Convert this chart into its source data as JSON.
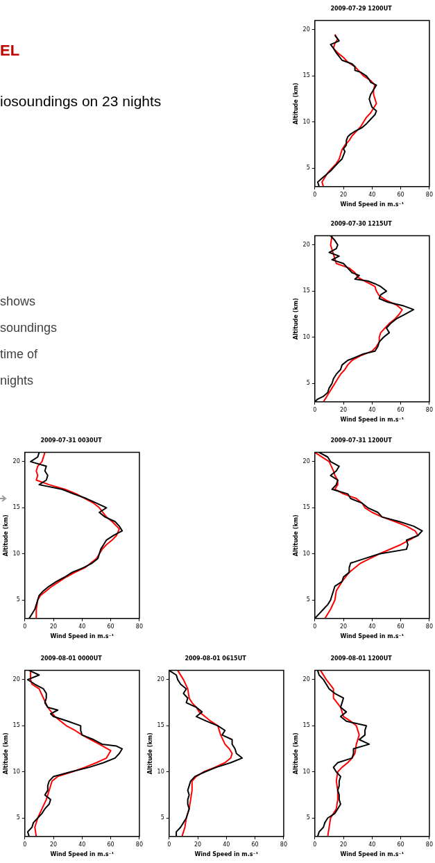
{
  "chart_data": [
    {
      "type": "other",
      "title": "EL",
      "subtitle": "iosoundings on 23 nights",
      "annotations": [
        "shows",
        "soundings",
        "time of",
        "nights"
      ]
    },
    {
      "type": "line",
      "title": "2009-07-29 1200UT",
      "xlabel": "Wind Speed in m.s⁻¹",
      "ylabel": "Altitude (km)",
      "xlim": [
        0,
        80
      ],
      "xticks": [
        0,
        20,
        40,
        60,
        80
      ],
      "ylim": [
        3,
        21
      ],
      "yticks": [
        5,
        10,
        15,
        20
      ],
      "grid": false,
      "legend": false,
      "marker": "none",
      "line_style": "solid",
      "series": [
        {
          "color": "#000000",
          "x": [
            3,
            2,
            5,
            8,
            11,
            14,
            17,
            19,
            20,
            21,
            20,
            22,
            22,
            23,
            25,
            28,
            33,
            36,
            39,
            42,
            43,
            40,
            39,
            38,
            39,
            41,
            43,
            39,
            38,
            36,
            32,
            28,
            28,
            26,
            19,
            17,
            15,
            13,
            11,
            17,
            15,
            14
          ],
          "values": [
            3.0,
            3.5,
            3.9,
            4.3,
            4.7,
            5.2,
            5.7,
            6.0,
            6.4,
            6.8,
            7.1,
            7.5,
            8.0,
            8.4,
            8.7,
            9.0,
            9.4,
            9.8,
            10.3,
            10.8,
            11.2,
            11.6,
            12.0,
            12.5,
            13.0,
            13.5,
            14.0,
            14.3,
            14.6,
            15.0,
            15.4,
            15.6,
            16.0,
            16.3,
            16.7,
            17.1,
            17.5,
            18.0,
            18.4,
            18.8,
            19.2,
            19.4
          ]
        },
        {
          "color": "#ff0000",
          "x": [
            6,
            5,
            7,
            9,
            12,
            15,
            17,
            18,
            19,
            21,
            24,
            26,
            29,
            32,
            34,
            36,
            39,
            41,
            43,
            42,
            41,
            41,
            42,
            39,
            34,
            31,
            28,
            23,
            20,
            16,
            13,
            14,
            16,
            14
          ],
          "values": [
            3.0,
            3.5,
            4.0,
            4.5,
            5.0,
            5.5,
            6.0,
            6.5,
            7.0,
            7.5,
            8.0,
            8.5,
            9.0,
            9.5,
            10.0,
            10.5,
            11.0,
            11.5,
            12.0,
            12.5,
            13.0,
            13.5,
            14.0,
            14.5,
            15.0,
            15.5,
            16.0,
            16.5,
            17.0,
            17.5,
            18.0,
            18.5,
            19.0,
            19.5
          ]
        }
      ]
    },
    {
      "type": "line",
      "title": "2009-07-30 1215UT",
      "xlabel": "Wind Speed in m.s⁻¹",
      "ylabel": "Altitude (km)",
      "xlim": [
        0,
        80
      ],
      "xticks": [
        0,
        20,
        40,
        60,
        80
      ],
      "ylim": [
        3,
        21
      ],
      "yticks": [
        5,
        10,
        15,
        20
      ],
      "grid": false,
      "legend": false,
      "marker": "none",
      "line_style": "solid",
      "series": [
        {
          "color": "#000000",
          "x": [
            0,
            2,
            6,
            9,
            10,
            12,
            13,
            15,
            18,
            19,
            23,
            28,
            34,
            42,
            44,
            45,
            48,
            52,
            50,
            53,
            57,
            63,
            69,
            62,
            51,
            45,
            46,
            50,
            46,
            42,
            37,
            28,
            31,
            26,
            23,
            20,
            12,
            17,
            10,
            15,
            16,
            14,
            11
          ],
          "values": [
            3.0,
            3.3,
            3.6,
            4.0,
            4.5,
            5.0,
            5.5,
            6.0,
            6.5,
            7.0,
            7.5,
            7.8,
            8.2,
            8.5,
            9.0,
            9.5,
            10.0,
            10.5,
            11.0,
            11.5,
            12.0,
            12.5,
            13.0,
            13.4,
            13.8,
            14.2,
            14.6,
            15.0,
            15.5,
            15.8,
            16.1,
            16.3,
            16.7,
            17.0,
            17.5,
            18.0,
            18.4,
            18.8,
            19.2,
            19.6,
            20.0,
            20.5,
            21.0
          ]
        },
        {
          "color": "#ff0000",
          "x": [
            6,
            8,
            10,
            12,
            14,
            16,
            18,
            21,
            23,
            26,
            32,
            40,
            43,
            45,
            45,
            46,
            49,
            52,
            56,
            59,
            61,
            57,
            50,
            45,
            43,
            42,
            36,
            30,
            28,
            24,
            15,
            14,
            13,
            12,
            11,
            12
          ],
          "values": [
            3.0,
            3.5,
            4.0,
            4.5,
            5.0,
            5.5,
            6.0,
            6.5,
            7.0,
            7.5,
            8.0,
            8.5,
            9.0,
            9.5,
            10.0,
            10.5,
            11.0,
            11.5,
            12.0,
            12.5,
            13.0,
            13.5,
            14.0,
            14.5,
            15.0,
            15.5,
            16.0,
            16.5,
            17.0,
            17.5,
            18.0,
            18.5,
            19.0,
            19.5,
            20.0,
            21.0
          ]
        }
      ]
    },
    {
      "type": "line",
      "title": "2009-07-31 0030UT",
      "xlabel": "Wind Speed in m.s⁻¹",
      "ylabel": "Altitude (km)",
      "xlim": [
        0,
        80
      ],
      "xticks": [
        0,
        20,
        40,
        60,
        80
      ],
      "ylim": [
        3,
        21
      ],
      "yticks": [
        5,
        10,
        15,
        20
      ],
      "grid": false,
      "legend": false,
      "marker": "none",
      "line_style": "solid",
      "series": [
        {
          "color": "#000000",
          "x": [
            3,
            5,
            7,
            8,
            9,
            10,
            13,
            17,
            22,
            28,
            33,
            41,
            47,
            51,
            52,
            53,
            55,
            57,
            62,
            68,
            66,
            63,
            56,
            52,
            57,
            50,
            43,
            34,
            26,
            10,
            15,
            16,
            14,
            15,
            4,
            9,
            10
          ],
          "values": [
            3.0,
            3.5,
            4.0,
            4.5,
            5.0,
            5.5,
            6.0,
            6.5,
            7.0,
            7.5,
            8.0,
            8.5,
            9.0,
            9.5,
            10.0,
            10.5,
            11.0,
            11.5,
            12.0,
            12.5,
            13.0,
            13.5,
            14.0,
            14.5,
            15.0,
            15.5,
            16.0,
            16.5,
            17.0,
            17.5,
            18.0,
            18.5,
            19.0,
            19.5,
            20.0,
            20.5,
            21.0
          ]
        },
        {
          "color": "#ff0000",
          "x": [
            8,
            8,
            9,
            11,
            15,
            19,
            24,
            29,
            35,
            42,
            46,
            50,
            52,
            54,
            57,
            61,
            64,
            66,
            61,
            57,
            52,
            48,
            42,
            36,
            28,
            17,
            8,
            9,
            8,
            9,
            12,
            14
          ],
          "values": [
            3.0,
            4.0,
            5.0,
            5.5,
            6.0,
            6.5,
            7.0,
            7.5,
            8.0,
            8.5,
            9.0,
            9.5,
            10.0,
            10.5,
            11.0,
            11.5,
            12.0,
            12.7,
            13.5,
            14.0,
            15.0,
            15.5,
            16.0,
            16.5,
            17.0,
            17.5,
            18.0,
            18.5,
            19.0,
            19.5,
            20.0,
            21.0
          ]
        }
      ]
    },
    {
      "type": "line",
      "title": "2009-07-31 1200UT",
      "xlabel": "Wind Speed in m.s⁻¹",
      "ylabel": "Altitude (km)",
      "xlim": [
        0,
        80
      ],
      "xticks": [
        0,
        20,
        40,
        60,
        80
      ],
      "ylim": [
        3,
        21
      ],
      "yticks": [
        5,
        10,
        15,
        20
      ],
      "grid": false,
      "legend": false,
      "marker": "none",
      "line_style": "solid",
      "series": [
        {
          "color": "#000000",
          "x": [
            0,
            3,
            6,
            9,
            11,
            12,
            13,
            14,
            19,
            20,
            24,
            24,
            25,
            35,
            45,
            64,
            65,
            64,
            72,
            75,
            69,
            59,
            47,
            44,
            37,
            33,
            25,
            23,
            12,
            15,
            16,
            11,
            15,
            17,
            11,
            9,
            3
          ],
          "values": [
            3.0,
            3.5,
            4.0,
            4.5,
            5.0,
            5.5,
            6.0,
            6.5,
            7.0,
            7.5,
            8.0,
            8.5,
            9.0,
            9.5,
            10.0,
            10.5,
            11.0,
            11.5,
            12.0,
            12.5,
            13.0,
            13.5,
            14.0,
            14.5,
            15.0,
            15.5,
            16.0,
            16.5,
            17.0,
            17.5,
            18.0,
            18.5,
            19.0,
            19.5,
            20.0,
            20.5,
            21.0
          ]
        },
        {
          "color": "#ff0000",
          "x": [
            7,
            9,
            11,
            14,
            15,
            19,
            24,
            32,
            45,
            60,
            72,
            70,
            64,
            56,
            47,
            40,
            35,
            33,
            29,
            20,
            14,
            16,
            16,
            14,
            13,
            10,
            0
          ],
          "values": [
            3.0,
            3.5,
            4.0,
            5.0,
            6.0,
            7.0,
            8.0,
            9.0,
            10.0,
            11.0,
            12.0,
            12.5,
            13.0,
            13.5,
            14.0,
            14.5,
            15.0,
            15.5,
            16.0,
            16.5,
            17.0,
            17.5,
            18.0,
            18.5,
            19.0,
            20.0,
            21.0
          ]
        }
      ]
    },
    {
      "type": "line",
      "title": "2009-08-01 0000UT",
      "xlabel": "Wind Speed in m.s⁻¹",
      "ylabel": "Altitude (km)",
      "xlim": [
        0,
        80
      ],
      "xticks": [
        0,
        20,
        40,
        60,
        80
      ],
      "ylim": [
        3,
        21
      ],
      "yticks": [
        5,
        10,
        15,
        20
      ],
      "grid": false,
      "legend": false,
      "marker": "none",
      "line_style": "solid",
      "series": [
        {
          "color": "#000000",
          "x": [
            3,
            2,
            5,
            6,
            9,
            12,
            14,
            17,
            18,
            14,
            16,
            16,
            17,
            20,
            32,
            45,
            55,
            63,
            66,
            68,
            64,
            54,
            48,
            40,
            39,
            39,
            30,
            20,
            18,
            23,
            16,
            14,
            15,
            15,
            13,
            7,
            2,
            10,
            3
          ],
          "values": [
            3.0,
            3.5,
            4.0,
            4.5,
            5.0,
            5.5,
            6.0,
            6.5,
            7.0,
            7.5,
            8.0,
            8.5,
            9.0,
            9.5,
            10.0,
            10.5,
            11.0,
            11.5,
            12.0,
            12.5,
            12.8,
            13.0,
            13.5,
            14.0,
            14.5,
            15.0,
            15.5,
            16.0,
            16.3,
            16.7,
            17.0,
            17.5,
            18.0,
            18.5,
            19.0,
            19.5,
            20.0,
            20.5,
            21.0
          ]
        },
        {
          "color": "#ff0000",
          "x": [
            8,
            7,
            9,
            12,
            15,
            17,
            19,
            23,
            33,
            42,
            50,
            57,
            60,
            52,
            46,
            40,
            35,
            29,
            25,
            21,
            16,
            13,
            10,
            5,
            4,
            4
          ],
          "values": [
            3.0,
            4.0,
            5.0,
            6.0,
            7.0,
            8.0,
            9.0,
            9.5,
            10.0,
            10.5,
            11.0,
            11.5,
            12.3,
            13.0,
            13.5,
            14.0,
            14.5,
            15.0,
            15.5,
            16.0,
            17.0,
            18.0,
            19.0,
            19.5,
            20.0,
            21.0
          ]
        }
      ]
    },
    {
      "type": "line",
      "title": "2009-08-01 0615UT",
      "xlabel": "Wind Speed in m.s⁻¹",
      "ylabel": "Altitude (km)",
      "xlim": [
        0,
        80
      ],
      "xticks": [
        0,
        20,
        40,
        60,
        80
      ],
      "ylim": [
        3,
        21
      ],
      "yticks": [
        5,
        10,
        15,
        20
      ],
      "grid": false,
      "legend": false,
      "marker": "none",
      "line_style": "solid",
      "series": [
        {
          "color": "#000000",
          "x": [
            5,
            5,
            8,
            10,
            12,
            13,
            14,
            13,
            13,
            14,
            13,
            14,
            15,
            18,
            25,
            33,
            43,
            51,
            47,
            46,
            44,
            44,
            37,
            39,
            34,
            26,
            19,
            23,
            19,
            12,
            13,
            10,
            12,
            8,
            6,
            5,
            0
          ],
          "values": [
            3.0,
            3.5,
            4.0,
            4.5,
            5.0,
            5.5,
            6.0,
            6.5,
            7.0,
            7.5,
            8.0,
            8.5,
            9.0,
            9.5,
            10.0,
            10.5,
            11.0,
            11.5,
            12.0,
            12.5,
            13.0,
            13.5,
            14.0,
            14.5,
            15.0,
            15.5,
            16.0,
            16.5,
            17.0,
            17.5,
            18.0,
            18.5,
            19.0,
            19.5,
            20.0,
            20.5,
            21.0
          ]
        },
        {
          "color": "#ff0000",
          "x": [
            9,
            10,
            11,
            12,
            14,
            15,
            16,
            16,
            19,
            24,
            32,
            39,
            43,
            44,
            42,
            39,
            36,
            34,
            29,
            25,
            21,
            19,
            16,
            14,
            13,
            10,
            6
          ],
          "values": [
            3.0,
            3.5,
            4.0,
            5.0,
            6.0,
            7.0,
            8.0,
            9.0,
            9.5,
            10.0,
            10.5,
            11.0,
            11.5,
            12.0,
            12.5,
            13.0,
            14.0,
            15.0,
            15.5,
            16.0,
            16.5,
            17.0,
            17.5,
            18.0,
            19.0,
            20.0,
            21.0
          ]
        }
      ]
    },
    {
      "type": "line",
      "title": "2009-08-01 1200UT",
      "xlabel": "Wind Speed in m.s⁻¹",
      "ylabel": "Altitude (km)",
      "xlim": [
        0,
        80
      ],
      "xticks": [
        0,
        20,
        40,
        60,
        80
      ],
      "ylim": [
        3,
        21
      ],
      "yticks": [
        5,
        10,
        15,
        20
      ],
      "grid": false,
      "legend": false,
      "marker": "none",
      "line_style": "solid",
      "series": [
        {
          "color": "#000000",
          "x": [
            2,
            3,
            6,
            7,
            9,
            14,
            16,
            18,
            17,
            17,
            16,
            17,
            17,
            18,
            15,
            13,
            16,
            26,
            27,
            27,
            38,
            31,
            35,
            35,
            36,
            22,
            18,
            22,
            18,
            19,
            20,
            14,
            10,
            8,
            6,
            3,
            2
          ],
          "values": [
            3.0,
            3.5,
            4.0,
            4.5,
            5.0,
            5.5,
            6.0,
            6.5,
            7.0,
            7.5,
            8.0,
            8.5,
            9.0,
            9.5,
            10.0,
            10.5,
            11.0,
            11.5,
            12.0,
            12.5,
            13.0,
            13.5,
            14.0,
            14.5,
            15.0,
            15.5,
            16.0,
            16.5,
            17.0,
            17.5,
            18.0,
            18.5,
            19.0,
            19.5,
            20.0,
            20.5,
            21.0
          ]
        },
        {
          "color": "#ff0000",
          "x": [
            9,
            10,
            11,
            15,
            16,
            16,
            15,
            16,
            19,
            23,
            26,
            28,
            29,
            31,
            29,
            25,
            20,
            18,
            13,
            13,
            8,
            4
          ],
          "values": [
            3.0,
            4.0,
            5.0,
            6.0,
            7.0,
            8.0,
            9.0,
            10.0,
            10.5,
            11.0,
            11.5,
            12.0,
            13.0,
            14.0,
            15.0,
            15.5,
            16.0,
            17.0,
            18.0,
            19.0,
            20.0,
            21.0
          ]
        }
      ]
    }
  ]
}
